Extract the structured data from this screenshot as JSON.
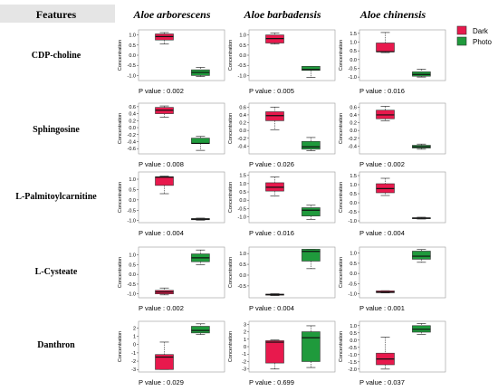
{
  "header": {
    "features_label": "Features"
  },
  "species": [
    "Aloe arborescens",
    "Aloe barbadensis",
    "Aloe chinensis"
  ],
  "legend": [
    {
      "label": "Dark",
      "color": "#e8194d"
    },
    {
      "label": "Photo",
      "color": "#1f9a3c"
    }
  ],
  "y_axis_label": "Concentration",
  "p_prefix": "P value : ",
  "chart_data": [
    {
      "type": "box",
      "feature": "CDP-choline",
      "species": "Aloe arborescens",
      "p_value": "0.002",
      "yticks": [
        1.0,
        0.5,
        0.0,
        -0.5,
        -1.0
      ],
      "tick_labels": [
        "1.0",
        "0.5",
        "0.0",
        "-0.5",
        "-1.0"
      ],
      "ylim": [
        -1.25,
        1.25
      ],
      "groups": [
        {
          "name": "Dark",
          "min": 0.55,
          "q1": 0.75,
          "median": 0.92,
          "q3": 1.05,
          "max": 1.12
        },
        {
          "name": "Photo",
          "min": -1.05,
          "q1": -1.0,
          "median": -0.85,
          "q3": -0.72,
          "max": -0.6
        }
      ]
    },
    {
      "type": "box",
      "feature": "CDP-choline",
      "species": "Aloe barbadensis",
      "p_value": "0.005",
      "yticks": [
        1.0,
        0.5,
        0.0,
        -0.5,
        -1.0
      ],
      "tick_labels": [
        "1.0",
        "0.5",
        "0.0",
        "-0.5",
        "-1.0"
      ],
      "ylim": [
        -1.25,
        1.25
      ],
      "groups": [
        {
          "name": "Dark",
          "min": 0.55,
          "q1": 0.6,
          "median": 0.82,
          "q3": 1.0,
          "max": 1.1
        },
        {
          "name": "Photo",
          "min": -1.1,
          "q1": -0.75,
          "median": -0.7,
          "q3": -0.55,
          "max": -0.55
        }
      ]
    },
    {
      "type": "box",
      "feature": "CDP-choline",
      "species": "Aloe chinensis",
      "p_value": "0.016",
      "yticks": [
        1.5,
        1.0,
        0.5,
        0.0,
        -0.5,
        -1.0
      ],
      "tick_labels": [
        "1.5",
        "1.0",
        "0.5",
        "0.0",
        "-0.5",
        "-1.0"
      ],
      "ylim": [
        -1.2,
        1.7
      ],
      "groups": [
        {
          "name": "Dark",
          "min": 0.4,
          "q1": 0.45,
          "median": 0.45,
          "q3": 0.95,
          "max": 1.55
        },
        {
          "name": "Photo",
          "min": -1.0,
          "q1": -0.95,
          "median": -0.85,
          "q3": -0.7,
          "max": -0.55
        }
      ]
    },
    {
      "type": "box",
      "feature": "Sphingosine",
      "species": "Aloe arborescens",
      "p_value": "0.008",
      "yticks": [
        0.6,
        0.4,
        0.2,
        0.0,
        -0.2,
        -0.4,
        -0.6
      ],
      "tick_labels": [
        "0.6",
        "0.4",
        "0.2",
        "0.0",
        "-0.2",
        "-0.4",
        "-0.6"
      ],
      "ylim": [
        -0.75,
        0.7
      ],
      "groups": [
        {
          "name": "Dark",
          "min": 0.3,
          "q1": 0.4,
          "median": 0.5,
          "q3": 0.58,
          "max": 0.62
        },
        {
          "name": "Photo",
          "min": -0.65,
          "q1": -0.45,
          "median": -0.45,
          "q3": -0.3,
          "max": -0.25
        }
      ]
    },
    {
      "type": "box",
      "feature": "Sphingosine",
      "species": "Aloe barbadensis",
      "p_value": "0.026",
      "yticks": [
        0.6,
        0.4,
        0.2,
        0.0,
        -0.2,
        -0.4
      ],
      "tick_labels": [
        "0.6",
        "0.4",
        "0.2",
        "0.0",
        "-0.2",
        "-0.4"
      ],
      "ylim": [
        -0.6,
        0.7
      ],
      "groups": [
        {
          "name": "Dark",
          "min": 0.02,
          "q1": 0.25,
          "median": 0.38,
          "q3": 0.48,
          "max": 0.6
        },
        {
          "name": "Photo",
          "min": -0.52,
          "q1": -0.48,
          "median": -0.42,
          "q3": -0.28,
          "max": -0.18
        }
      ]
    },
    {
      "type": "box",
      "feature": "Sphingosine",
      "species": "Aloe chinensis",
      "p_value": "0.002",
      "yticks": [
        0.6,
        0.4,
        0.2,
        0.0,
        -0.2,
        -0.4
      ],
      "tick_labels": [
        "0.6",
        "0.4",
        "0.2",
        "0.0",
        "-0.2",
        "-0.4"
      ],
      "ylim": [
        -0.6,
        0.7
      ],
      "groups": [
        {
          "name": "Dark",
          "min": 0.25,
          "q1": 0.3,
          "median": 0.4,
          "q3": 0.52,
          "max": 0.62
        },
        {
          "name": "Photo",
          "min": -0.48,
          "q1": -0.45,
          "median": -0.42,
          "q3": -0.38,
          "max": -0.35
        }
      ]
    },
    {
      "type": "box",
      "feature": "L-Palmitoylcarnitine",
      "species": "Aloe arborescens",
      "p_value": "0.004",
      "yticks": [
        1.0,
        0.5,
        0.0,
        -0.5,
        -1.0
      ],
      "tick_labels": [
        "1.0",
        "0.5",
        "0.0",
        "-0.5",
        "-1.0"
      ],
      "ylim": [
        -1.1,
        1.35
      ],
      "groups": [
        {
          "name": "Dark",
          "min": 0.3,
          "q1": 0.7,
          "median": 1.1,
          "q3": 1.12,
          "max": 1.15
        },
        {
          "name": "Photo",
          "min": -0.98,
          "q1": -0.96,
          "median": -0.93,
          "q3": -0.9,
          "max": -0.88
        }
      ]
    },
    {
      "type": "box",
      "feature": "L-Palmitoylcarnitine",
      "species": "Aloe barbadensis",
      "p_value": "0.016",
      "yticks": [
        1.5,
        1.0,
        0.5,
        0.0,
        -0.5,
        -1.0
      ],
      "tick_labels": [
        "1.5",
        "1.0",
        "0.5",
        "0.0",
        "-0.5",
        "-1.0"
      ],
      "ylim": [
        -1.35,
        1.7
      ],
      "groups": [
        {
          "name": "Dark",
          "min": 0.25,
          "q1": 0.55,
          "median": 0.78,
          "q3": 1.05,
          "max": 1.4
        },
        {
          "name": "Photo",
          "min": -1.15,
          "q1": -0.95,
          "median": -0.6,
          "q3": -0.45,
          "max": -0.3
        }
      ]
    },
    {
      "type": "box",
      "feature": "L-Palmitoylcarnitine",
      "species": "Aloe chinensis",
      "p_value": "0.004",
      "yticks": [
        1.5,
        1.0,
        0.5,
        0.0,
        -0.5,
        -1.0
      ],
      "tick_labels": [
        "1.5",
        "1.0",
        "0.5",
        "0.0",
        "-0.5",
        "-1.0"
      ],
      "ylim": [
        -1.1,
        1.7
      ],
      "groups": [
        {
          "name": "Dark",
          "min": 0.4,
          "q1": 0.55,
          "median": 0.78,
          "q3": 1.05,
          "max": 1.35
        },
        {
          "name": "Photo",
          "min": -0.9,
          "q1": -0.88,
          "median": -0.85,
          "q3": -0.83,
          "max": -0.8
        }
      ]
    },
    {
      "type": "box",
      "feature": "L-Cysteate",
      "species": "Aloe arborescens",
      "p_value": "0.002",
      "yticks": [
        1.0,
        0.5,
        0.0,
        -0.5,
        -1.0
      ],
      "tick_labels": [
        "1.0",
        "0.5",
        "0.0",
        "-0.5",
        "-1.0"
      ],
      "ylim": [
        -1.2,
        1.4
      ],
      "groups": [
        {
          "name": "Dark",
          "min": -1.05,
          "q1": -1.0,
          "median": -0.9,
          "q3": -0.82,
          "max": -0.7
        },
        {
          "name": "Photo",
          "min": 0.5,
          "q1": 0.65,
          "median": 0.85,
          "q3": 1.05,
          "max": 1.25
        }
      ]
    },
    {
      "type": "box",
      "feature": "L-Cysteate",
      "species": "Aloe barbadensis",
      "p_value": "0.004",
      "yticks": [
        1.0,
        0.5,
        0.0,
        -0.5
      ],
      "tick_labels": [
        "1.0",
        "0.5",
        "0.0",
        "-0.5"
      ],
      "ylim": [
        -1.05,
        1.3
      ],
      "groups": [
        {
          "name": "Dark",
          "min": -0.95,
          "q1": -0.93,
          "median": -0.9,
          "q3": -0.88,
          "max": -0.86
        },
        {
          "name": "Photo",
          "min": 0.3,
          "q1": 0.65,
          "median": 1.1,
          "q3": 1.2,
          "max": 1.2
        }
      ]
    },
    {
      "type": "box",
      "feature": "L-Cysteate",
      "species": "Aloe chinensis",
      "p_value": "0.001",
      "yticks": [
        1.0,
        0.5,
        0.0,
        -0.5,
        -1.0
      ],
      "tick_labels": [
        "1.0",
        "0.5",
        "0.0",
        "-0.5",
        "-1.0"
      ],
      "ylim": [
        -1.2,
        1.3
      ],
      "groups": [
        {
          "name": "Dark",
          "min": -0.96,
          "q1": -0.95,
          "median": -0.92,
          "q3": -0.86,
          "max": -0.85
        },
        {
          "name": "Photo",
          "min": 0.55,
          "q1": 0.7,
          "median": 0.85,
          "q3": 1.1,
          "max": 1.18
        }
      ]
    },
    {
      "type": "box",
      "feature": "Danthron",
      "species": "Aloe arborescens",
      "p_value": "0.029",
      "yticks": [
        2,
        1,
        0,
        -1,
        -2,
        -3
      ],
      "tick_labels": [
        "2",
        "1",
        "0",
        "-1",
        "-2",
        "-3"
      ],
      "ylim": [
        -3.3,
        2.8
      ],
      "groups": [
        {
          "name": "Dark",
          "min": -3.0,
          "q1": -3.0,
          "median": -1.5,
          "q3": -1.2,
          "max": 0.3
        },
        {
          "name": "Photo",
          "min": 1.2,
          "q1": 1.4,
          "median": 1.7,
          "q3": 2.2,
          "max": 2.5
        }
      ]
    },
    {
      "type": "box",
      "feature": "Danthron",
      "species": "Aloe barbadensis",
      "p_value": "0.699",
      "yticks": [
        3,
        2,
        1,
        0,
        -1,
        -2,
        -3
      ],
      "tick_labels": [
        "3",
        "2",
        "1",
        "0",
        "-1",
        "-2",
        "-3"
      ],
      "ylim": [
        -3.4,
        3.4
      ],
      "groups": [
        {
          "name": "Dark",
          "min": -3.0,
          "q1": -2.2,
          "median": 0.6,
          "q3": 0.8,
          "max": 0.9
        },
        {
          "name": "Photo",
          "min": -2.8,
          "q1": -2.0,
          "median": 1.2,
          "q3": 2.0,
          "max": 2.8
        }
      ]
    },
    {
      "type": "box",
      "feature": "Danthron",
      "species": "Aloe chinensis",
      "p_value": "0.037",
      "yticks": [
        1.0,
        0.5,
        0.0,
        -0.5,
        -1.0,
        -1.5,
        -2.0
      ],
      "tick_labels": [
        "1.0",
        "0.5",
        "0.0",
        "-0.5",
        "-1.0",
        "-1.5",
        "-2.0"
      ],
      "ylim": [
        -2.2,
        1.3
      ],
      "groups": [
        {
          "name": "Dark",
          "min": -2.0,
          "q1": -1.7,
          "median": -1.3,
          "q3": -0.9,
          "max": 0.2
        },
        {
          "name": "Photo",
          "min": 0.4,
          "q1": 0.55,
          "median": 0.75,
          "q3": 1.0,
          "max": 1.15
        }
      ]
    }
  ]
}
